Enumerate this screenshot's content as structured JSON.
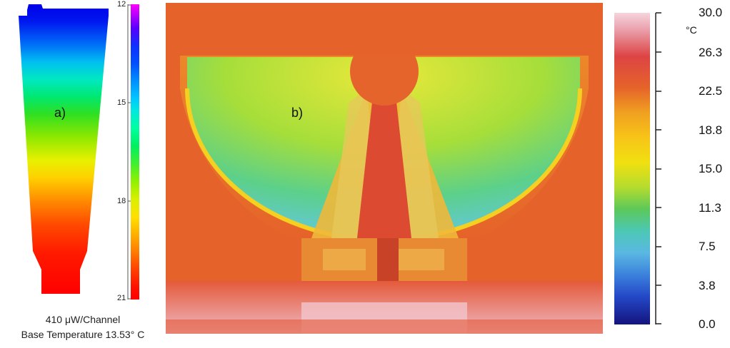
{
  "panel_a": {
    "label": "a)",
    "scale_ticks": [
      "12",
      "15",
      "18",
      "21"
    ],
    "caption_line1": "410 μW/Channel",
    "caption_line2": "Base Temperature 13.53° C"
  },
  "panel_b": {
    "label": "b)",
    "scale_unit": "°C",
    "scale_ticks": [
      "30.0",
      "26.3",
      "22.5",
      "18.8",
      "15.0",
      "11.3",
      "7.5",
      "3.8",
      "0.0"
    ]
  },
  "colors": {
    "thermal_background": "#e5632a",
    "scale_top": "#f6d4dc",
    "scale_bottom": "#14147e"
  }
}
